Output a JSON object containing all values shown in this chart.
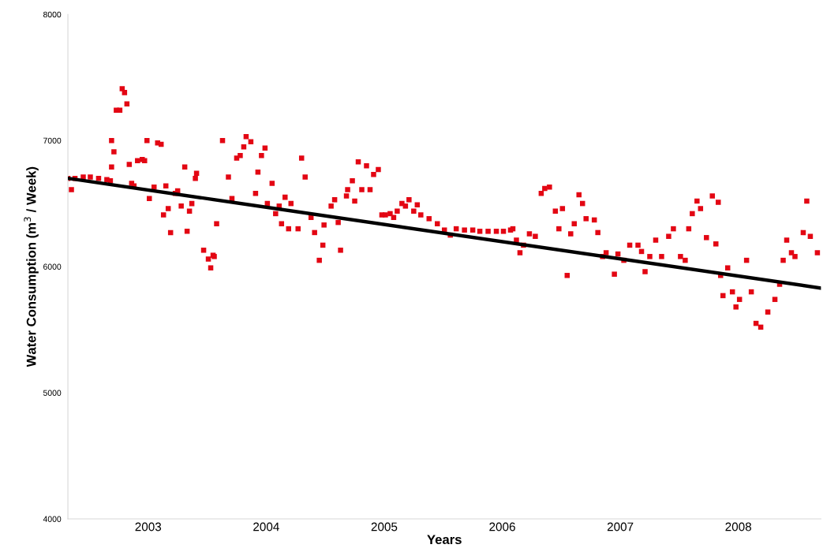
{
  "chart_data": {
    "type": "scatter",
    "xlabel": "Years",
    "ylabel": "Water Consumption (m$^{3}$ / Week)",
    "xlim": [
      2002.32,
      2008.7
    ],
    "xticks": [
      2003,
      2004,
      2005,
      2006,
      2007,
      2008
    ],
    "ylim": [
      4000,
      8000
    ],
    "yticks": [
      4000,
      5000,
      6000,
      7000,
      8000
    ],
    "grid": false,
    "legend": false,
    "series": [
      {
        "marker": "square",
        "color": "#e30613",
        "x": [
          2002.32,
          2002.35,
          2002.38,
          2002.45,
          2002.51,
          2002.58,
          2002.65,
          2002.68,
          2002.69,
          2002.69,
          2002.71,
          2002.73,
          2002.76,
          2002.78,
          2002.8,
          2002.82,
          2002.84,
          2002.86,
          2002.88,
          2002.91,
          2002.95,
          2002.97,
          2002.99,
          2003.01,
          2003.05,
          2003.08,
          2003.11,
          2003.13,
          2003.15,
          2003.17,
          2003.19,
          2003.23,
          2003.25,
          2003.28,
          2003.31,
          2003.33,
          2003.35,
          2003.37,
          2003.4,
          2003.41,
          2003.47,
          2003.51,
          2003.53,
          2003.55,
          2003.56,
          2003.58,
          2003.63,
          2003.68,
          2003.71,
          2003.75,
          2003.78,
          2003.81,
          2003.83,
          2003.87,
          2003.91,
          2003.93,
          2003.96,
          2003.99,
          2004.01,
          2004.05,
          2004.08,
          2004.11,
          2004.13,
          2004.16,
          2004.19,
          2004.21,
          2004.27,
          2004.3,
          2004.33,
          2004.38,
          2004.41,
          2004.45,
          2004.48,
          2004.49,
          2004.55,
          2004.58,
          2004.61,
          2004.63,
          2004.68,
          2004.69,
          2004.73,
          2004.75,
          2004.78,
          2004.81,
          2004.85,
          2004.88,
          2004.91,
          2004.95,
          2004.98,
          2005.01,
          2005.05,
          2005.08,
          2005.11,
          2005.15,
          2005.18,
          2005.21,
          2005.25,
          2005.28,
          2005.31,
          2005.38,
          2005.45,
          2005.51,
          2005.56,
          2005.61,
          2005.68,
          2005.75,
          2005.81,
          2005.88,
          2005.95,
          2006.01,
          2006.07,
          2006.09,
          2006.12,
          2006.15,
          2006.18,
          2006.23,
          2006.28,
          2006.33,
          2006.36,
          2006.4,
          2006.45,
          2006.48,
          2006.51,
          2006.55,
          2006.58,
          2006.61,
          2006.65,
          2006.68,
          2006.71,
          2006.78,
          2006.81,
          2006.85,
          2006.88,
          2006.95,
          2006.98,
          2007.03,
          2007.08,
          2007.15,
          2007.18,
          2007.21,
          2007.25,
          2007.3,
          2007.35,
          2007.41,
          2007.45,
          2007.51,
          2007.55,
          2007.58,
          2007.61,
          2007.65,
          2007.68,
          2007.73,
          2007.78,
          2007.81,
          2007.83,
          2007.85,
          2007.87,
          2007.91,
          2007.95,
          2007.98,
          2008.01,
          2008.07,
          2008.11,
          2008.15,
          2008.19,
          2008.25,
          2008.31,
          2008.35,
          2008.38,
          2008.41,
          2008.45,
          2008.48,
          2008.55,
          2008.58,
          2008.61,
          2008.67
        ],
        "values": [
          6700,
          6610,
          6700,
          6710,
          6710,
          6700,
          6690,
          6680,
          6790,
          7000,
          6910,
          7240,
          7240,
          7410,
          7380,
          7290,
          6810,
          6660,
          6640,
          6840,
          6850,
          6840,
          7000,
          6540,
          6630,
          6980,
          6970,
          6410,
          6640,
          6460,
          6270,
          6580,
          6600,
          6480,
          6790,
          6280,
          6440,
          6500,
          6700,
          6740,
          6130,
          6060,
          5990,
          6090,
          6080,
          6340,
          7000,
          6710,
          6540,
          6860,
          6880,
          6950,
          7030,
          6990,
          6580,
          6750,
          6880,
          6940,
          6500,
          6660,
          6420,
          6480,
          6340,
          6550,
          6300,
          6500,
          6300,
          6860,
          6710,
          6390,
          6270,
          6050,
          6170,
          6330,
          6480,
          6530,
          6350,
          6130,
          6560,
          6610,
          6680,
          6520,
          6830,
          6610,
          6800,
          6610,
          6730,
          6770,
          6410,
          6410,
          6420,
          6390,
          6440,
          6500,
          6480,
          6530,
          6440,
          6490,
          6410,
          6380,
          6340,
          6290,
          6250,
          6300,
          6290,
          6290,
          6280,
          6280,
          6280,
          6280,
          6290,
          6300,
          6210,
          6110,
          6170,
          6260,
          6240,
          6580,
          6620,
          6630,
          6440,
          6300,
          6460,
          5930,
          6260,
          6340,
          6570,
          6500,
          6380,
          6370,
          6270,
          6080,
          6110,
          5940,
          6100,
          6050,
          6170,
          6170,
          6120,
          5960,
          6080,
          6210,
          6080,
          6240,
          6300,
          6080,
          6050,
          6300,
          6420,
          6520,
          6460,
          6230,
          6560,
          6180,
          6510,
          5930,
          5770,
          5990,
          5800,
          5680,
          5740,
          6050,
          5800,
          5550,
          5520,
          5640,
          5740,
          5860,
          6050,
          6210,
          6110,
          6080,
          6270,
          6520,
          6240,
          6110
        ]
      },
      {
        "type": "line",
        "color": "#000000",
        "x": [
          2002.32,
          2008.7
        ],
        "values": [
          6700,
          5830
        ],
        "line_style": "solid"
      }
    ]
  }
}
